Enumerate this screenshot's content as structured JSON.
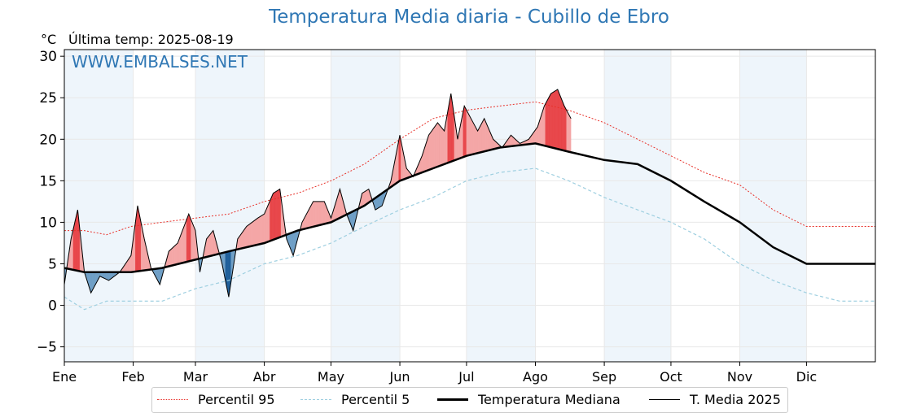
{
  "title": "Temperatura Media diaria - Cubillo de Ebro",
  "unit": "°C",
  "last_update": "Última temp: 2025-08-19",
  "watermark": "WWW.EMBALSES.NET",
  "colors": {
    "title": "#2f77b4",
    "p95": "#e8312a",
    "p5": "#9ecfe0",
    "median": "#000000",
    "above_fill": "#f4a6a6",
    "above_fill_strong": "#e8464a",
    "below_fill": "#6f9fc6",
    "below_fill_strong": "#1f5f9a",
    "month_band": "#eef5fb"
  },
  "legend": {
    "p95": "Percentil 95",
    "p5": "Percentil 5",
    "median": "Temperatura Mediana",
    "current": "T. Media 2025"
  },
  "chart_data": {
    "type": "line",
    "title": "Temperatura Media diaria - Cubillo de Ebro",
    "ylabel": "°C",
    "xlabel": "",
    "ylim": [
      -6.8,
      30.8
    ],
    "xlim": [
      1,
      366
    ],
    "yticks": [
      -5,
      0,
      5,
      10,
      15,
      20,
      25,
      30
    ],
    "month_labels": [
      "Ene",
      "Feb",
      "Mar",
      "Abr",
      "May",
      "Jun",
      "Jul",
      "Ago",
      "Sep",
      "Oct",
      "Nov",
      "Dic"
    ],
    "month_starts": [
      1,
      32,
      60,
      91,
      121,
      152,
      182,
      213,
      244,
      274,
      305,
      335
    ],
    "shaded_months": [
      0,
      2,
      4,
      6,
      8,
      10
    ],
    "grid": true,
    "legend_position": "bottom",
    "series": [
      {
        "name": "Percentil 95",
        "style": "dotted",
        "points": [
          [
            1,
            9
          ],
          [
            10,
            9
          ],
          [
            20,
            8.5
          ],
          [
            31,
            9.5
          ],
          [
            45,
            10
          ],
          [
            60,
            10.5
          ],
          [
            75,
            11
          ],
          [
            91,
            12.5
          ],
          [
            106,
            13.5
          ],
          [
            121,
            15
          ],
          [
            136,
            17
          ],
          [
            152,
            20
          ],
          [
            167,
            22.5
          ],
          [
            182,
            23.5
          ],
          [
            197,
            24
          ],
          [
            213,
            24.5
          ],
          [
            228,
            23.5
          ],
          [
            244,
            22
          ],
          [
            259,
            20
          ],
          [
            274,
            18
          ],
          [
            289,
            16
          ],
          [
            305,
            14.5
          ],
          [
            320,
            11.5
          ],
          [
            335,
            9.5
          ],
          [
            350,
            9.5
          ],
          [
            366,
            9.5
          ]
        ]
      },
      {
        "name": "Percentil 5",
        "style": "dashed",
        "points": [
          [
            1,
            1
          ],
          [
            10,
            -0.5
          ],
          [
            20,
            0.5
          ],
          [
            31,
            0.5
          ],
          [
            45,
            0.5
          ],
          [
            60,
            2
          ],
          [
            75,
            3
          ],
          [
            91,
            5
          ],
          [
            106,
            6
          ],
          [
            121,
            7.5
          ],
          [
            136,
            9.5
          ],
          [
            152,
            11.5
          ],
          [
            167,
            13
          ],
          [
            182,
            15
          ],
          [
            197,
            16
          ],
          [
            213,
            16.5
          ],
          [
            228,
            15
          ],
          [
            244,
            13
          ],
          [
            259,
            11.5
          ],
          [
            274,
            10
          ],
          [
            289,
            8
          ],
          [
            305,
            5
          ],
          [
            320,
            3
          ],
          [
            335,
            1.5
          ],
          [
            350,
            0.5
          ],
          [
            366,
            0.5
          ]
        ]
      },
      {
        "name": "Temperatura Mediana",
        "style": "solid-thick",
        "points": [
          [
            1,
            4.5
          ],
          [
            10,
            4
          ],
          [
            20,
            4
          ],
          [
            31,
            4
          ],
          [
            45,
            4.5
          ],
          [
            60,
            5.5
          ],
          [
            75,
            6.5
          ],
          [
            91,
            7.5
          ],
          [
            106,
            9
          ],
          [
            121,
            10
          ],
          [
            136,
            12
          ],
          [
            152,
            15
          ],
          [
            167,
            16.5
          ],
          [
            182,
            18
          ],
          [
            197,
            19
          ],
          [
            213,
            19.5
          ],
          [
            228,
            18.5
          ],
          [
            244,
            17.5
          ],
          [
            259,
            17
          ],
          [
            274,
            15
          ],
          [
            289,
            12.5
          ],
          [
            305,
            10
          ],
          [
            320,
            7
          ],
          [
            335,
            5
          ],
          [
            350,
            5
          ],
          [
            366,
            5
          ]
        ]
      },
      {
        "name": "T. Media 2025",
        "style": "solid-thin",
        "points": [
          [
            1,
            2.5
          ],
          [
            4,
            8
          ],
          [
            7,
            11.5
          ],
          [
            10,
            4
          ],
          [
            13,
            1.5
          ],
          [
            17,
            3.5
          ],
          [
            21,
            3
          ],
          [
            26,
            4
          ],
          [
            31,
            6
          ],
          [
            34,
            12
          ],
          [
            37,
            8
          ],
          [
            40,
            4.5
          ],
          [
            44,
            2.5
          ],
          [
            48,
            6.5
          ],
          [
            52,
            7.5
          ],
          [
            57,
            11
          ],
          [
            60,
            9
          ],
          [
            62,
            4
          ],
          [
            65,
            8
          ],
          [
            68,
            9
          ],
          [
            72,
            5
          ],
          [
            75,
            1
          ],
          [
            79,
            8
          ],
          [
            83,
            9.5
          ],
          [
            88,
            10.5
          ],
          [
            91,
            11
          ],
          [
            95,
            13.5
          ],
          [
            98,
            14
          ],
          [
            101,
            8
          ],
          [
            104,
            6
          ],
          [
            108,
            10
          ],
          [
            113,
            12.5
          ],
          [
            118,
            12.5
          ],
          [
            121,
            10.5
          ],
          [
            125,
            14
          ],
          [
            128,
            11
          ],
          [
            131,
            9
          ],
          [
            135,
            13.5
          ],
          [
            138,
            14
          ],
          [
            141,
            11.5
          ],
          [
            144,
            12
          ],
          [
            148,
            15
          ],
          [
            152,
            20.5
          ],
          [
            155,
            16.5
          ],
          [
            158,
            15.5
          ],
          [
            162,
            18
          ],
          [
            165,
            20.5
          ],
          [
            169,
            22
          ],
          [
            172,
            21
          ],
          [
            175,
            25.5
          ],
          [
            178,
            20
          ],
          [
            181,
            24
          ],
          [
            184,
            22.5
          ],
          [
            187,
            21
          ],
          [
            190,
            22.5
          ],
          [
            194,
            20
          ],
          [
            198,
            19
          ],
          [
            202,
            20.5
          ],
          [
            206,
            19.5
          ],
          [
            210,
            20
          ],
          [
            214,
            21.5
          ],
          [
            217,
            24
          ],
          [
            220,
            25.5
          ],
          [
            223,
            26
          ],
          [
            226,
            24
          ],
          [
            229,
            22.5
          ]
        ]
      }
    ]
  }
}
